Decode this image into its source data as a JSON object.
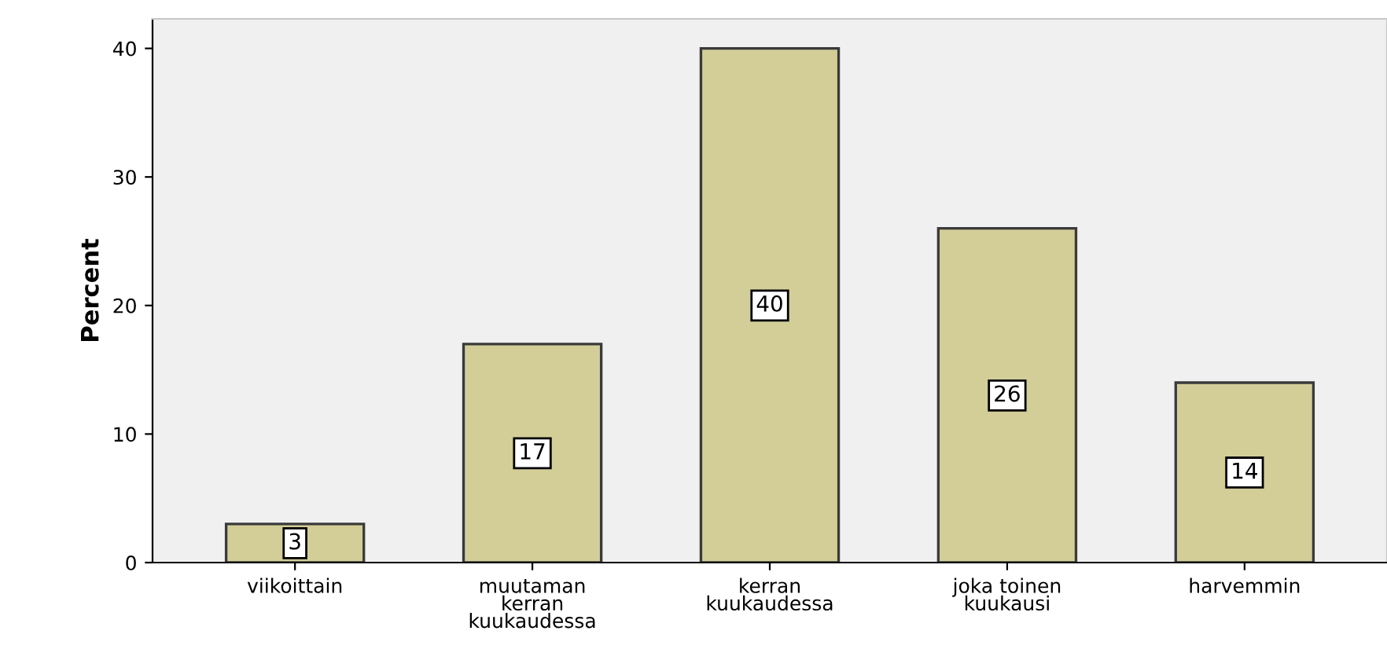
{
  "chart_data": {
    "type": "bar",
    "ylabel": "Percent",
    "categories": [
      "viikoittain",
      "muutaman\nkerran\nkuukaudessa",
      "kerran\nkuukaudessa",
      "joka toinen\nkuukausi",
      "harvemmin"
    ],
    "values": [
      3,
      17,
      40,
      26,
      14
    ],
    "color": "#d3ce98",
    "ylim": [
      0,
      42.3
    ],
    "yticks": [
      0,
      10,
      20,
      30,
      40
    ],
    "grid": false,
    "data_labels": true
  }
}
